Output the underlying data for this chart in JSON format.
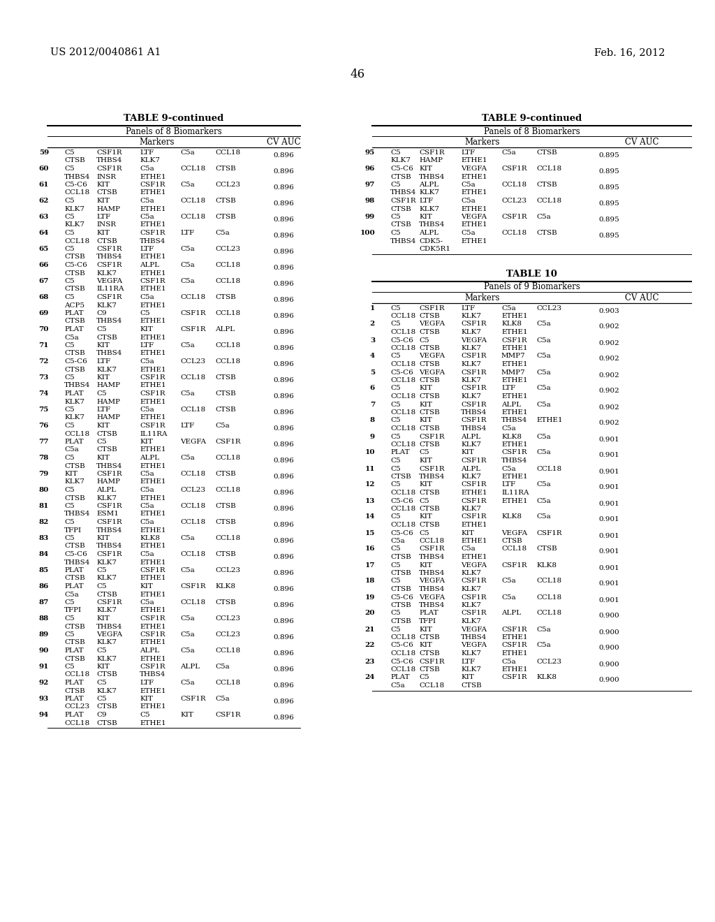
{
  "header_left": "US 2012/0040861 A1",
  "header_right": "Feb. 16, 2012",
  "page_number": "46",
  "left_table_title": "TABLE 9-continued",
  "left_table_subtitle": "Panels of 8 Biomarkers",
  "right_table1_title": "TABLE 9-continued",
  "right_table1_subtitle": "Panels of 8 Biomarkers",
  "right_table2_title": "TABLE 10",
  "right_table2_subtitle": "Panels of 9 Biomarkers",
  "left_rows": [
    [
      "59",
      "C5",
      "CSF1R",
      "LTF",
      "C5a",
      "CCL18",
      "",
      "0.896",
      "CTSB",
      "THBS4",
      "KLK7",
      "",
      "",
      ""
    ],
    [
      "60",
      "C5",
      "CSF1R",
      "C5a",
      "CCL18",
      "CTSB",
      "",
      "0.896",
      "THBS4",
      "INSR",
      "ETHE1",
      "",
      "",
      ""
    ],
    [
      "61",
      "C5-C6",
      "KIT",
      "CSF1R",
      "C5a",
      "CCL23",
      "",
      "0.896",
      "CCL18",
      "CTSB",
      "ETHE1",
      "",
      "",
      ""
    ],
    [
      "62",
      "C5",
      "KIT",
      "C5a",
      "CCL18",
      "CTSB",
      "",
      "0.896",
      "KLK7",
      "HAMP",
      "ETHE1",
      "",
      "",
      ""
    ],
    [
      "63",
      "C5",
      "LTF",
      "C5a",
      "CCL18",
      "CTSB",
      "",
      "0.896",
      "KLK7",
      "INSR",
      "ETHE1",
      "",
      "",
      ""
    ],
    [
      "64",
      "C5",
      "KIT",
      "CSF1R",
      "LTF",
      "C5a",
      "",
      "0.896",
      "CCL18",
      "CTSB",
      "THBS4",
      "",
      "",
      ""
    ],
    [
      "65",
      "C5",
      "CSF1R",
      "LTF",
      "C5a",
      "CCL23",
      "",
      "0.896",
      "CTSB",
      "THBS4",
      "ETHE1",
      "",
      "",
      ""
    ],
    [
      "66",
      "C5-C6",
      "CSF1R",
      "ALPL",
      "C5a",
      "CCL18",
      "",
      "0.896",
      "CTSB",
      "KLK7",
      "ETHE1",
      "",
      "",
      ""
    ],
    [
      "67",
      "C5",
      "VEGFA",
      "CSF1R",
      "C5a",
      "CCL18",
      "",
      "0.896",
      "CTSB",
      "IL11RA",
      "ETHE1",
      "",
      "",
      ""
    ],
    [
      "68",
      "C5",
      "CSF1R",
      "C5a",
      "CCL18",
      "CTSB",
      "",
      "0.896",
      "ACP5",
      "KLK7",
      "ETHE1",
      "",
      "",
      ""
    ],
    [
      "69",
      "PLAT",
      "C9",
      "C5",
      "CSF1R",
      "CCL18",
      "",
      "0.896",
      "CTSB",
      "THBS4",
      "ETHE1",
      "",
      "",
      ""
    ],
    [
      "70",
      "PLAT",
      "C5",
      "KIT",
      "CSF1R",
      "ALPL",
      "",
      "0.896",
      "C5a",
      "CTSB",
      "ETHE1",
      "",
      "",
      ""
    ],
    [
      "71",
      "C5",
      "KIT",
      "LTF",
      "C5a",
      "CCL18",
      "",
      "0.896",
      "CTSB",
      "THBS4",
      "ETHE1",
      "",
      "",
      ""
    ],
    [
      "72",
      "C5-C6",
      "LTF",
      "C5a",
      "CCL23",
      "CCL18",
      "",
      "0.896",
      "CTSB",
      "KLK7",
      "ETHE1",
      "",
      "",
      ""
    ],
    [
      "73",
      "C5",
      "KIT",
      "CSF1R",
      "CCL18",
      "CTSB",
      "",
      "0.896",
      "THBS4",
      "HAMP",
      "ETHE1",
      "",
      "",
      ""
    ],
    [
      "74",
      "PLAT",
      "C5",
      "CSF1R",
      "C5a",
      "CTSB",
      "",
      "0.896",
      "KLK7",
      "HAMP",
      "ETHE1",
      "",
      "",
      ""
    ],
    [
      "75",
      "C5",
      "LTF",
      "C5a",
      "CCL18",
      "CTSB",
      "",
      "0.896",
      "KLK7",
      "HAMP",
      "ETHE1",
      "",
      "",
      ""
    ],
    [
      "76",
      "C5",
      "KIT",
      "CSF1R",
      "LTF",
      "C5a",
      "",
      "0.896",
      "CCL18",
      "CTSB",
      "IL11RA",
      "",
      "",
      ""
    ],
    [
      "77",
      "PLAT",
      "C5",
      "KIT",
      "VEGFA",
      "CSF1R",
      "",
      "0.896",
      "C5a",
      "CTSB",
      "ETHE1",
      "",
      "",
      ""
    ],
    [
      "78",
      "C5",
      "KIT",
      "ALPL",
      "C5a",
      "CCL18",
      "",
      "0.896",
      "CTSB",
      "THBS4",
      "ETHE1",
      "",
      "",
      ""
    ],
    [
      "79",
      "KIT",
      "CSF1R",
      "C5a",
      "CCL18",
      "CTSB",
      "",
      "0.896",
      "KLK7",
      "HAMP",
      "ETHE1",
      "",
      "",
      ""
    ],
    [
      "80",
      "C5",
      "ALPL",
      "C5a",
      "CCL23",
      "CCL18",
      "",
      "0.896",
      "CTSB",
      "KLK7",
      "ETHE1",
      "",
      "",
      ""
    ],
    [
      "81",
      "C5",
      "CSF1R",
      "C5a",
      "CCL18",
      "CTSB",
      "",
      "0.896",
      "THBS4",
      "ESM1",
      "ETHE1",
      "",
      "",
      ""
    ],
    [
      "82",
      "C5",
      "CSF1R",
      "C5a",
      "CCL18",
      "CTSB",
      "",
      "0.896",
      "TFPI",
      "THBS4",
      "ETHE1",
      "",
      "",
      ""
    ],
    [
      "83",
      "C5",
      "KIT",
      "KLK8",
      "C5a",
      "CCL18",
      "",
      "0.896",
      "CTSB",
      "THBS4",
      "ETHE1",
      "",
      "",
      ""
    ],
    [
      "84",
      "C5-C6",
      "CSF1R",
      "C5a",
      "CCL18",
      "CTSB",
      "",
      "0.896",
      "THBS4",
      "KLK7",
      "ETHE1",
      "",
      "",
      ""
    ],
    [
      "85",
      "PLAT",
      "C5",
      "CSF1R",
      "C5a",
      "CCL23",
      "",
      "0.896",
      "CTSB",
      "KLK7",
      "ETHE1",
      "",
      "",
      ""
    ],
    [
      "86",
      "PLAT",
      "C5",
      "KIT",
      "CSF1R",
      "KLK8",
      "",
      "0.896",
      "C5a",
      "CTSB",
      "ETHE1",
      "",
      "",
      ""
    ],
    [
      "87",
      "C5",
      "CSF1R",
      "C5a",
      "CCL18",
      "CTSB",
      "",
      "0.896",
      "TFPI",
      "KLK7",
      "ETHE1",
      "",
      "",
      ""
    ],
    [
      "88",
      "C5",
      "KIT",
      "CSF1R",
      "C5a",
      "CCL23",
      "",
      "0.896",
      "CTSB",
      "THBS4",
      "ETHE1",
      "",
      "",
      ""
    ],
    [
      "89",
      "C5",
      "VEGFA",
      "CSF1R",
      "C5a",
      "CCL23",
      "",
      "0.896",
      "CTSB",
      "KLK7",
      "ETHE1",
      "",
      "",
      ""
    ],
    [
      "90",
      "PLAT",
      "C5",
      "ALPL",
      "C5a",
      "CCL18",
      "",
      "0.896",
      "CTSB",
      "KLK7",
      "ETHE1",
      "",
      "",
      ""
    ],
    [
      "91",
      "C5",
      "KIT",
      "CSF1R",
      "ALPL",
      "C5a",
      "",
      "0.896",
      "CCL18",
      "CTSB",
      "THBS4",
      "",
      "",
      ""
    ],
    [
      "92",
      "PLAT",
      "C5",
      "LTF",
      "C5a",
      "CCL18",
      "",
      "0.896",
      "CTSB",
      "KLK7",
      "ETHE1",
      "",
      "",
      ""
    ],
    [
      "93",
      "PLAT",
      "C5",
      "KIT",
      "CSF1R",
      "C5a",
      "",
      "0.896",
      "CCL23",
      "CTSB",
      "ETHE1",
      "",
      "",
      ""
    ],
    [
      "94",
      "PLAT",
      "C9",
      "C5",
      "KIT",
      "CSF1R",
      "",
      "0.896",
      "CCL18",
      "CTSB",
      "ETHE1",
      "",
      "",
      ""
    ]
  ],
  "right_rows_t9": [
    [
      "95",
      "C5",
      "CSF1R",
      "LTF",
      "C5a",
      "CTSB",
      "",
      "0.895",
      "KLK7",
      "HAMP",
      "ETHE1",
      "",
      "",
      ""
    ],
    [
      "96",
      "C5-C6",
      "KIT",
      "VEGFA",
      "CSF1R",
      "CCL18",
      "",
      "0.895",
      "CTSB",
      "THBS4",
      "ETHE1",
      "",
      "",
      ""
    ],
    [
      "97",
      "C5",
      "ALPL",
      "C5a",
      "CCL18",
      "CTSB",
      "",
      "0.895",
      "THBS4",
      "KLK7",
      "ETHE1",
      "",
      "",
      ""
    ],
    [
      "98",
      "CSF1R",
      "LTF",
      "C5a",
      "CCL23",
      "CCL18",
      "",
      "0.895",
      "CTSB",
      "KLK7",
      "ETHE1",
      "",
      "",
      ""
    ],
    [
      "99",
      "C5",
      "KIT",
      "VEGFA",
      "CSF1R",
      "C5a",
      "",
      "0.895",
      "CTSB",
      "THBS4",
      "ETHE1",
      "",
      "",
      ""
    ],
    [
      "100",
      "C5",
      "ALPL",
      "C5a",
      "CCL18",
      "CTSB",
      "",
      "0.895",
      "THBS4",
      "CDK5-",
      "ETHE1",
      "",
      "",
      "",
      "",
      "CDK5R1",
      "",
      "",
      "",
      ""
    ]
  ],
  "right_rows_t10": [
    [
      "1",
      "C5",
      "CSF1R",
      "LTF",
      "C5a",
      "CCL23",
      "0.903",
      "CCL18",
      "CTSB",
      "KLK7",
      "ETHE1",
      ""
    ],
    [
      "2",
      "C5",
      "VEGFA",
      "CSF1R",
      "KLK8",
      "C5a",
      "0.902",
      "CCL18",
      "CTSB",
      "KLK7",
      "ETHE1",
      ""
    ],
    [
      "3",
      "C5-C6",
      "C5",
      "VEGFA",
      "CSF1R",
      "C5a",
      "0.902",
      "CCL18",
      "CTSB",
      "KLK7",
      "ETHE1",
      ""
    ],
    [
      "4",
      "C5",
      "VEGFA",
      "CSF1R",
      "MMP7",
      "C5a",
      "0.902",
      "CCL18",
      "CTSB",
      "KLK7",
      "ETHE1",
      ""
    ],
    [
      "5",
      "C5-C6",
      "VEGFA",
      "CSF1R",
      "MMP7",
      "C5a",
      "0.902",
      "CCL18",
      "CTSB",
      "KLK7",
      "ETHE1",
      ""
    ],
    [
      "6",
      "C5",
      "KIT",
      "CSF1R",
      "LTF",
      "C5a",
      "0.902",
      "CCL18",
      "CTSB",
      "KLK7",
      "ETHE1",
      ""
    ],
    [
      "7",
      "C5",
      "KIT",
      "CSF1R",
      "ALPL",
      "C5a",
      "0.902",
      "CCL18",
      "CTSB",
      "THBS4",
      "ETHE1",
      ""
    ],
    [
      "8",
      "C5",
      "KIT",
      "CSF1R",
      "THBS4",
      "ETHE1",
      "0.902",
      "CCL18",
      "CTSB",
      "THBS4",
      "C5a",
      ""
    ],
    [
      "9",
      "C5",
      "CSF1R",
      "ALPL",
      "KLK8",
      "C5a",
      "0.901",
      "CCL18",
      "CTSB",
      "KLK7",
      "ETHE1",
      ""
    ],
    [
      "10",
      "PLAT",
      "C5",
      "KIT",
      "CSF1R",
      "C5a",
      "0.901",
      "C5",
      "KIT",
      "CSF1R",
      "THBS4",
      ""
    ],
    [
      "11",
      "C5",
      "CSF1R",
      "ALPL",
      "C5a",
      "CCL18",
      "0.901",
      "CTSB",
      "THBS4",
      "KLK7",
      "ETHE1",
      ""
    ],
    [
      "12",
      "C5",
      "KIT",
      "CSF1R",
      "LTF",
      "C5a",
      "0.901",
      "CCL18",
      "CTSB",
      "ETHE1",
      "IL11RA",
      ""
    ],
    [
      "13",
      "C5-C6",
      "C5",
      "CSF1R",
      "ETHE1",
      "C5a",
      "0.901",
      "CCL18",
      "CTSB",
      "KLK7",
      "",
      ""
    ],
    [
      "14",
      "C5",
      "KIT",
      "CSF1R",
      "KLK8",
      "C5a",
      "0.901",
      "CCL18",
      "CTSB",
      "ETHE1",
      "",
      ""
    ],
    [
      "15",
      "C5-C6",
      "C5",
      "KIT",
      "VEGFA",
      "CSF1R",
      "0.901",
      "C5a",
      "CCL18",
      "ETHE1",
      "CTSB",
      ""
    ],
    [
      "16",
      "C5",
      "CSF1R",
      "C5a",
      "CCL18",
      "CTSB",
      "0.901",
      "CTSB",
      "THBS4",
      "ETHE1",
      "",
      ""
    ],
    [
      "17",
      "C5",
      "KIT",
      "VEGFA",
      "CSF1R",
      "KLK8",
      "0.901",
      "CTSB",
      "THBS4",
      "KLK7",
      "",
      ""
    ],
    [
      "18",
      "C5",
      "VEGFA",
      "CSF1R",
      "C5a",
      "CCL18",
      "0.901",
      "CTSB",
      "THBS4",
      "KLK7",
      "",
      ""
    ],
    [
      "19",
      "C5-C6",
      "VEGFA",
      "CSF1R",
      "C5a",
      "CCL18",
      "0.901",
      "CTSB",
      "THBS4",
      "KLK7",
      "",
      ""
    ],
    [
      "20",
      "C5",
      "PLAT",
      "CSF1R",
      "ALPL",
      "CCL18",
      "0.900",
      "CTSB",
      "TFPI",
      "KLK7",
      "",
      ""
    ],
    [
      "21",
      "C5",
      "KIT",
      "VEGFA",
      "CSF1R",
      "C5a",
      "0.900",
      "CCL18",
      "CTSB",
      "THBS4",
      "ETHE1",
      ""
    ],
    [
      "22",
      "C5-C6",
      "KIT",
      "VEGFA",
      "CSF1R",
      "C5a",
      "0.900",
      "CCL18",
      "CTSB",
      "KLK7",
      "ETHE1",
      ""
    ],
    [
      "23",
      "C5-C6",
      "CSF1R",
      "LTF",
      "C5a",
      "CCL23",
      "0.900",
      "CCL18",
      "CTSB",
      "KLK7",
      "ETHE1",
      ""
    ],
    [
      "24",
      "PLAT",
      "C5",
      "KIT",
      "CSF1R",
      "KLK8",
      "0.900",
      "C5a",
      "CCL18",
      "CTSB",
      "",
      ""
    ]
  ]
}
